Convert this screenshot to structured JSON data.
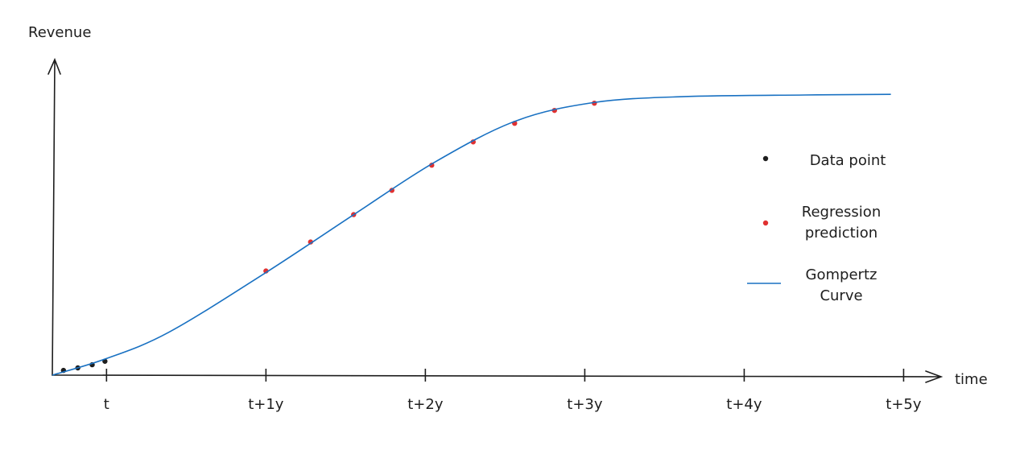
{
  "chart_data": {
    "type": "line",
    "y_label": "Revenue",
    "x_label": "time",
    "xlim": [
      -0.34,
      5.22
    ],
    "ylim": [
      0,
      100
    ],
    "xticks": [
      {
        "value": 0,
        "label": "t"
      },
      {
        "value": 1,
        "label": "t+1y"
      },
      {
        "value": 2,
        "label": "t+2y"
      },
      {
        "value": 3,
        "label": "t+3y"
      },
      {
        "value": 4,
        "label": "t+4y"
      },
      {
        "value": 5,
        "label": "t+5y"
      }
    ],
    "series": [
      {
        "name": "Data point",
        "type": "scatter",
        "color": "#1e1e1e",
        "x": [
          -0.27,
          -0.18,
          -0.09,
          -0.01
        ],
        "values": [
          1.5,
          2.3,
          3.3,
          4.4
        ]
      },
      {
        "name": "Regression prediction",
        "type": "scatter",
        "color": "#e03131",
        "x": [
          1.0,
          1.28,
          1.55,
          1.79,
          2.04,
          2.3,
          2.56,
          2.81,
          3.06
        ],
        "values": [
          33.1,
          42.3,
          51.0,
          58.7,
          66.7,
          74.1,
          80.0,
          84.1,
          86.4
        ]
      },
      {
        "name": "Gompertz Curve",
        "type": "line",
        "color": "#1971c2",
        "x": [
          -0.34,
          -0.01,
          0.39,
          1.0,
          1.56,
          2.06,
          2.57,
          3.07,
          3.63,
          4.38,
          4.92
        ],
        "values": [
          0,
          5.1,
          13.6,
          32.6,
          51.3,
          67.7,
          80.8,
          86.7,
          88.5,
          89.0,
          89.2
        ]
      }
    ]
  }
}
